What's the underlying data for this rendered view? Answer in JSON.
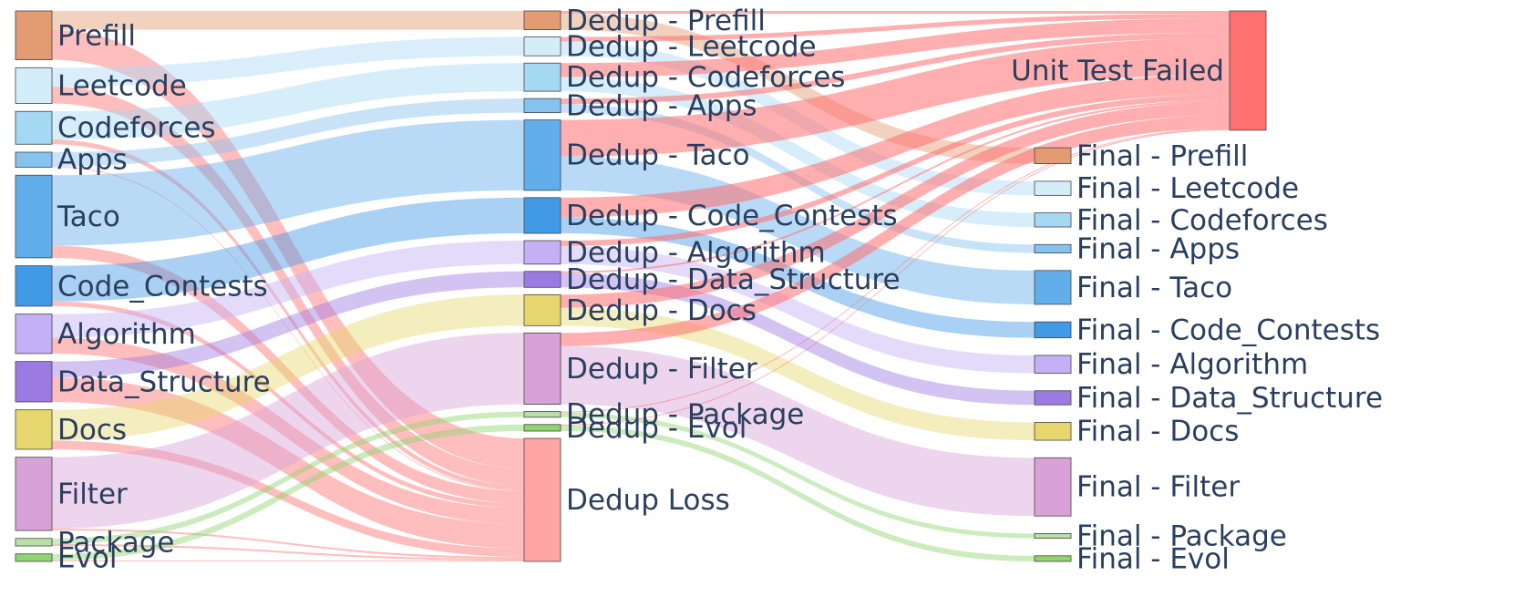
{
  "chart_data": {
    "type": "sankey",
    "nodes": [
      {
        "label": "Prefill",
        "color": "#e39b72"
      },
      {
        "label": "Leetcode",
        "color": "#d3eef9"
      },
      {
        "label": "Codeforces",
        "color": "#a5d8f3"
      },
      {
        "label": "Apps",
        "color": "#86c2ee"
      },
      {
        "label": "Taco",
        "color": "#62aeea"
      },
      {
        "label": "Code_Contests",
        "color": "#4299e6"
      },
      {
        "label": "Algorithm",
        "color": "#c4b0f5"
      },
      {
        "label": "Data_Structure",
        "color": "#9b7ae2"
      },
      {
        "label": "Docs",
        "color": "#e6d66e"
      },
      {
        "label": "Filter",
        "color": "#d8a2d6"
      },
      {
        "label": "Package",
        "color": "#b9e0a5"
      },
      {
        "label": "Evol",
        "color": "#8fd46f"
      },
      {
        "label": "Dedup - Prefill",
        "color": "#e39b72"
      },
      {
        "label": "Dedup - Leetcode",
        "color": "#d3eef9"
      },
      {
        "label": "Dedup - Codeforces",
        "color": "#a5d8f3"
      },
      {
        "label": "Dedup - Apps",
        "color": "#86c2ee"
      },
      {
        "label": "Dedup - Taco",
        "color": "#62aeea"
      },
      {
        "label": "Dedup - Code_Contests",
        "color": "#4299e6"
      },
      {
        "label": "Dedup - Algorithm",
        "color": "#c4b0f5"
      },
      {
        "label": "Dedup - Data_Structure",
        "color": "#9b7ae2"
      },
      {
        "label": "Dedup - Docs",
        "color": "#e6d66e"
      },
      {
        "label": "Dedup - Filter",
        "color": "#d8a2d6"
      },
      {
        "label": "Dedup - Package",
        "color": "#b9e0a5"
      },
      {
        "label": "Dedup - Evol",
        "color": "#8fd46f"
      },
      {
        "label": "Dedup Loss",
        "color": "#ffa5a5"
      },
      {
        "label": "Unit Test Failed",
        "color": "#ff7070"
      },
      {
        "label": "Final - Prefill",
        "color": "#e39b72"
      },
      {
        "label": "Final - Leetcode",
        "color": "#d3eef9"
      },
      {
        "label": "Final - Codeforces",
        "color": "#a5d8f3"
      },
      {
        "label": "Final - Apps",
        "color": "#86c2ee"
      },
      {
        "label": "Final - Taco",
        "color": "#62aeea"
      },
      {
        "label": "Final - Code_Contests",
        "color": "#4299e6"
      },
      {
        "label": "Final - Algorithm",
        "color": "#c4b0f5"
      },
      {
        "label": "Final - Data_Structure",
        "color": "#9b7ae2"
      },
      {
        "label": "Final - Docs",
        "color": "#e6d66e"
      },
      {
        "label": "Final - Filter",
        "color": "#d8a2d6"
      },
      {
        "label": "Final - Package",
        "color": "#b9e0a5"
      },
      {
        "label": "Final - Evol",
        "color": "#8fd46f"
      }
    ],
    "links": [
      {
        "source": 0,
        "target": 12,
        "value": 20,
        "color": "rgba(227,155,114,0.45)"
      },
      {
        "source": 0,
        "target": 24,
        "value": 32,
        "color": "rgba(255,110,110,0.45)"
      },
      {
        "source": 1,
        "target": 13,
        "value": 20,
        "color": "rgba(170,218,245,0.45)"
      },
      {
        "source": 1,
        "target": 24,
        "value": 18,
        "color": "rgba(255,110,110,0.45)"
      },
      {
        "source": 2,
        "target": 14,
        "value": 30,
        "color": "rgba(165,216,243,0.45)"
      },
      {
        "source": 2,
        "target": 24,
        "value": 5,
        "color": "rgba(255,110,110,0.45)"
      },
      {
        "source": 3,
        "target": 15,
        "value": 15,
        "color": "rgba(134,194,238,0.45)"
      },
      {
        "source": 3,
        "target": 24,
        "value": 1,
        "color": "rgba(255,110,110,0.45)"
      },
      {
        "source": 4,
        "target": 16,
        "value": 75,
        "color": "rgba(98,174,234,0.45)"
      },
      {
        "source": 4,
        "target": 24,
        "value": 13,
        "color": "rgba(255,110,110,0.45)"
      },
      {
        "source": 5,
        "target": 17,
        "value": 38,
        "color": "rgba(66,153,230,0.45)"
      },
      {
        "source": 5,
        "target": 24,
        "value": 5,
        "color": "rgba(255,110,110,0.45)"
      },
      {
        "source": 6,
        "target": 18,
        "value": 25,
        "color": "rgba(196,176,245,0.45)"
      },
      {
        "source": 6,
        "target": 24,
        "value": 17,
        "color": "rgba(255,110,110,0.45)"
      },
      {
        "source": 7,
        "target": 19,
        "value": 17,
        "color": "rgba(155,122,226,0.45)"
      },
      {
        "source": 7,
        "target": 24,
        "value": 26,
        "color": "rgba(255,110,110,0.45)"
      },
      {
        "source": 8,
        "target": 20,
        "value": 33,
        "color": "rgba(230,214,110,0.45)"
      },
      {
        "source": 8,
        "target": 24,
        "value": 9,
        "color": "rgba(255,110,110,0.45)"
      },
      {
        "source": 9,
        "target": 21,
        "value": 76,
        "color": "rgba(216,162,214,0.45)"
      },
      {
        "source": 9,
        "target": 24,
        "value": 2,
        "color": "rgba(255,110,110,0.45)"
      },
      {
        "source": 10,
        "target": 22,
        "value": 6,
        "color": "rgba(143,212,111,0.45)"
      },
      {
        "source": 10,
        "target": 24,
        "value": 2,
        "color": "rgba(255,110,110,0.45)"
      },
      {
        "source": 11,
        "target": 23,
        "value": 7,
        "color": "rgba(143,212,111,0.45)"
      },
      {
        "source": 11,
        "target": 24,
        "value": 1,
        "color": "rgba(255,110,110,0.45)"
      },
      {
        "source": 12,
        "target": 25,
        "value": 3,
        "color": "rgba(255,110,110,0.55)"
      },
      {
        "source": 12,
        "target": 26,
        "value": 17,
        "color": "rgba(227,155,114,0.45)"
      },
      {
        "source": 13,
        "target": 25,
        "value": 5,
        "color": "rgba(255,110,110,0.55)"
      },
      {
        "source": 13,
        "target": 27,
        "value": 15,
        "color": "rgba(170,218,245,0.45)"
      },
      {
        "source": 14,
        "target": 25,
        "value": 15,
        "color": "rgba(255,110,110,0.55)"
      },
      {
        "source": 14,
        "target": 28,
        "value": 15,
        "color": "rgba(165,216,243,0.45)"
      },
      {
        "source": 15,
        "target": 25,
        "value": 6,
        "color": "rgba(255,110,110,0.55)"
      },
      {
        "source": 15,
        "target": 29,
        "value": 9,
        "color": "rgba(134,194,238,0.45)"
      },
      {
        "source": 16,
        "target": 25,
        "value": 39,
        "color": "rgba(255,110,110,0.55)"
      },
      {
        "source": 16,
        "target": 30,
        "value": 36,
        "color": "rgba(98,174,234,0.45)"
      },
      {
        "source": 17,
        "target": 25,
        "value": 21,
        "color": "rgba(255,110,110,0.55)"
      },
      {
        "source": 17,
        "target": 31,
        "value": 17,
        "color": "rgba(66,153,230,0.45)"
      },
      {
        "source": 18,
        "target": 25,
        "value": 6,
        "color": "rgba(255,110,110,0.55)"
      },
      {
        "source": 18,
        "target": 32,
        "value": 19,
        "color": "rgba(196,176,245,0.45)"
      },
      {
        "source": 19,
        "target": 25,
        "value": 2,
        "color": "rgba(255,110,110,0.55)"
      },
      {
        "source": 19,
        "target": 33,
        "value": 15,
        "color": "rgba(155,122,226,0.45)"
      },
      {
        "source": 20,
        "target": 25,
        "value": 14,
        "color": "rgba(255,110,110,0.55)"
      },
      {
        "source": 20,
        "target": 34,
        "value": 19,
        "color": "rgba(230,214,110,0.45)"
      },
      {
        "source": 21,
        "target": 25,
        "value": 14,
        "color": "rgba(255,110,110,0.55)"
      },
      {
        "source": 21,
        "target": 35,
        "value": 62,
        "color": "rgba(216,162,214,0.45)"
      },
      {
        "source": 22,
        "target": 25,
        "value": 1,
        "color": "rgba(255,110,110,0.55)"
      },
      {
        "source": 22,
        "target": 36,
        "value": 5,
        "color": "rgba(143,212,111,0.45)"
      },
      {
        "source": 23,
        "target": 25,
        "value": 1,
        "color": "rgba(255,110,110,0.55)"
      },
      {
        "source": 23,
        "target": 37,
        "value": 6,
        "color": "rgba(143,212,111,0.45)"
      }
    ]
  }
}
